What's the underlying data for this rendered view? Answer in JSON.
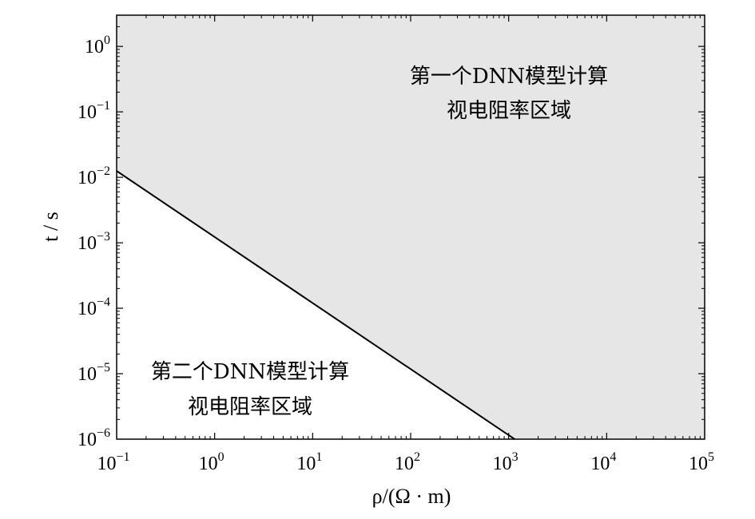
{
  "chart_data": {
    "type": "area",
    "title": "",
    "xlabel": "ρ/(Ω · m)",
    "ylabel": "t / s",
    "x_scale": "log",
    "y_scale": "log",
    "xlim": [
      0.1,
      100000
    ],
    "ylim": [
      1e-06,
      3
    ],
    "x_ticks": [
      {
        "base": "10",
        "exp": "−1",
        "value": 0.1
      },
      {
        "base": "10",
        "exp": "0",
        "value": 1
      },
      {
        "base": "10",
        "exp": "1",
        "value": 10
      },
      {
        "base": "10",
        "exp": "2",
        "value": 100
      },
      {
        "base": "10",
        "exp": "3",
        "value": 1000
      },
      {
        "base": "10",
        "exp": "4",
        "value": 10000
      },
      {
        "base": "10",
        "exp": "5",
        "value": 100000
      }
    ],
    "y_ticks": [
      {
        "base": "10",
        "exp": "0",
        "value": 1
      },
      {
        "base": "10",
        "exp": "−1",
        "value": 0.1
      },
      {
        "base": "10",
        "exp": "−2",
        "value": 0.01
      },
      {
        "base": "10",
        "exp": "−3",
        "value": 0.001
      },
      {
        "base": "10",
        "exp": "−4",
        "value": 0.0001
      },
      {
        "base": "10",
        "exp": "−5",
        "value": 1e-05
      },
      {
        "base": "10",
        "exp": "−6",
        "value": 1e-06
      }
    ],
    "boundary_line": {
      "x": [
        0.1,
        1150
      ],
      "y": [
        0.0125,
        1e-06
      ]
    },
    "regions": [
      {
        "lines": [
          "第一个DNN模型计算",
          "视电阻率区域"
        ],
        "fill": "#e6e6e6",
        "side": "above"
      },
      {
        "lines": [
          "第二个DNN模型计算",
          "视电阻率区域"
        ],
        "fill": "#ffffff",
        "side": "below"
      }
    ],
    "grid": false
  },
  "colors": {
    "upper_region": "#e6e6e6",
    "lower_region": "#ffffff",
    "line": "#000000"
  }
}
